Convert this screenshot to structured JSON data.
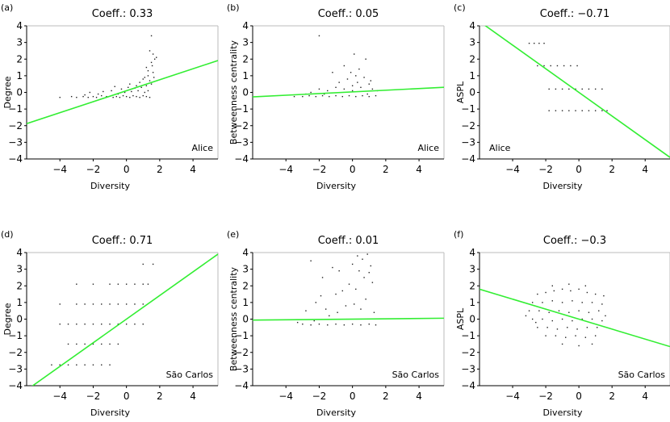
{
  "chart_data": [
    {
      "id": "a",
      "panel_label": "(a)",
      "type": "scatter",
      "title": "Coeff.: 0.33",
      "xlabel": "Diversity",
      "ylabel": "Degree",
      "annotation": "Alice",
      "annotation_pos": "bottom-right",
      "xlim": [
        -6,
        5.5
      ],
      "ylim": [
        -4,
        4
      ],
      "xticks": [
        -4,
        -2,
        0,
        2,
        4
      ],
      "yticks": [
        4,
        3,
        2,
        1,
        0,
        -1,
        -2,
        -3,
        -4
      ],
      "fit_line": {
        "slope": 0.33,
        "intercept": 0.1,
        "color": "#33ee33"
      },
      "points": [
        [
          -0.8,
          -0.3
        ],
        [
          -0.6,
          -0.25
        ],
        [
          -0.4,
          -0.3
        ],
        [
          -0.2,
          -0.2
        ],
        [
          0,
          -0.25
        ],
        [
          0.2,
          -0.3
        ],
        [
          0.4,
          -0.2
        ],
        [
          0.6,
          -0.25
        ],
        [
          0.8,
          -0.3
        ],
        [
          1,
          -0.2
        ],
        [
          1.2,
          -0.25
        ],
        [
          1.4,
          -0.3
        ],
        [
          -0.5,
          -0.1
        ],
        [
          -0.1,
          0
        ],
        [
          0.3,
          0.05
        ],
        [
          0.7,
          0.1
        ],
        [
          1.1,
          0
        ],
        [
          1.3,
          0.1
        ],
        [
          -0.3,
          0.2
        ],
        [
          0.5,
          0.25
        ],
        [
          0.9,
          0.3
        ],
        [
          1.2,
          0.4
        ],
        [
          1.5,
          0.5
        ],
        [
          0.2,
          0.5
        ],
        [
          0.8,
          0.6
        ],
        [
          1,
          0.8
        ],
        [
          1.3,
          1
        ],
        [
          1.6,
          1.2
        ],
        [
          1.2,
          1.5
        ],
        [
          1.5,
          1.8
        ],
        [
          1.7,
          2
        ],
        [
          1.6,
          2.3
        ],
        [
          1.4,
          2.5
        ],
        [
          1.5,
          3.4
        ],
        [
          1.3,
          1.3
        ],
        [
          1.1,
          0.9
        ],
        [
          0.6,
          0.4
        ],
        [
          -0.9,
          0.1
        ],
        [
          -1.2,
          -0.25
        ],
        [
          -1.5,
          -0.2
        ],
        [
          -1.8,
          -0.3
        ],
        [
          -2,
          -0.25
        ],
        [
          -2.3,
          -0.3
        ],
        [
          -2.6,
          -0.25
        ],
        [
          -3,
          -0.3
        ],
        [
          -3.3,
          -0.25
        ],
        [
          -4,
          -0.3
        ],
        [
          -1.4,
          0.05
        ],
        [
          -1.7,
          -0.1
        ],
        [
          -2.5,
          -0.15
        ],
        [
          -2.2,
          0
        ],
        [
          -0.7,
          0.35
        ],
        [
          0.1,
          0.3
        ],
        [
          1.4,
          0.7
        ],
        [
          1.65,
          0.9
        ],
        [
          1.55,
          1.6
        ],
        [
          1.8,
          2.1
        ]
      ]
    },
    {
      "id": "b",
      "panel_label": "(b)",
      "type": "scatter",
      "title": "Coeff.: 0.05",
      "xlabel": "Diversity",
      "ylabel": "Betweenness centrality",
      "annotation": "Alice",
      "annotation_pos": "bottom-right",
      "xlim": [
        -6,
        5.5
      ],
      "ylim": [
        -4,
        4
      ],
      "xticks": [
        -4,
        -2,
        0,
        2,
        4
      ],
      "yticks": [
        4,
        3,
        2,
        1,
        0,
        -1,
        -2,
        -3,
        -4
      ],
      "fit_line": {
        "slope": 0.05,
        "intercept": 0.03,
        "color": "#33ee33"
      },
      "points": [
        [
          -3.5,
          -0.25
        ],
        [
          -3,
          -0.25
        ],
        [
          -2.6,
          -0.2
        ],
        [
          -2.2,
          -0.25
        ],
        [
          -1.8,
          -0.2
        ],
        [
          -1.4,
          -0.25
        ],
        [
          -1,
          -0.2
        ],
        [
          -0.6,
          -0.25
        ],
        [
          -0.2,
          -0.2
        ],
        [
          0.2,
          -0.25
        ],
        [
          0.6,
          -0.2
        ],
        [
          1,
          -0.25
        ],
        [
          1.4,
          -0.2
        ],
        [
          -2.5,
          0
        ],
        [
          -2,
          0.2
        ],
        [
          -1.5,
          0.1
        ],
        [
          -1,
          0.3
        ],
        [
          -0.5,
          0.2
        ],
        [
          0,
          0.4
        ],
        [
          0.5,
          0.3
        ],
        [
          1,
          0.5
        ],
        [
          -0.3,
          0.8
        ],
        [
          0.2,
          1
        ],
        [
          0.7,
          0.9
        ],
        [
          -1.2,
          1.2
        ],
        [
          0.4,
          1.4
        ],
        [
          -0.8,
          0.6
        ],
        [
          1.2,
          0.2
        ],
        [
          1.5,
          0.1
        ],
        [
          -2,
          3.4
        ],
        [
          0.1,
          2.3
        ],
        [
          0.8,
          2
        ],
        [
          -0.5,
          1.6
        ],
        [
          0,
          0.1
        ],
        [
          -1.7,
          -0.1
        ],
        [
          -2.8,
          -0.1
        ],
        [
          0.9,
          -0.1
        ],
        [
          0.3,
          0.6
        ],
        [
          -0.1,
          1.2
        ],
        [
          1.1,
          0.7
        ]
      ]
    },
    {
      "id": "c",
      "panel_label": "(c)",
      "type": "scatter",
      "title": "Coeff.: −0.71",
      "xlabel": "Diversity",
      "ylabel": "ASPL",
      "annotation": "Alice",
      "annotation_pos": "bottom-left",
      "xlim": [
        -6,
        5.5
      ],
      "ylim": [
        -4,
        4
      ],
      "xticks": [
        -4,
        -2,
        0,
        2,
        4
      ],
      "yticks": [
        4,
        3,
        2,
        1,
        0,
        -1,
        -2,
        -3,
        -4
      ],
      "fit_line": {
        "slope": -0.71,
        "intercept": 0,
        "color": "#33ee33"
      },
      "points": [
        [
          -3,
          2.95
        ],
        [
          -2.7,
          2.95
        ],
        [
          -2.4,
          2.95
        ],
        [
          -2.1,
          2.95
        ],
        [
          -2.5,
          1.6
        ],
        [
          -2.1,
          1.6
        ],
        [
          -1.7,
          1.6
        ],
        [
          -1.3,
          1.6
        ],
        [
          -0.9,
          1.6
        ],
        [
          -0.5,
          1.6
        ],
        [
          -0.1,
          1.6
        ],
        [
          -1.8,
          0.2
        ],
        [
          -1.4,
          0.2
        ],
        [
          -1,
          0.2
        ],
        [
          -0.6,
          0.2
        ],
        [
          -0.2,
          0.2
        ],
        [
          0.2,
          0.2
        ],
        [
          0.6,
          0.2
        ],
        [
          1,
          0.2
        ],
        [
          1.4,
          0.2
        ],
        [
          -1.8,
          -1.1
        ],
        [
          -1.4,
          -1.1
        ],
        [
          -1,
          -1.1
        ],
        [
          -0.6,
          -1.1
        ],
        [
          -0.2,
          -1.1
        ],
        [
          0.2,
          -1.1
        ],
        [
          0.6,
          -1.1
        ],
        [
          1,
          -1.1
        ],
        [
          1.4,
          -1.1
        ],
        [
          1.7,
          -1.1
        ]
      ]
    },
    {
      "id": "d",
      "panel_label": "(d)",
      "type": "scatter",
      "title": "Coeff.: 0.71",
      "xlabel": "Diversity",
      "ylabel": "Degree",
      "annotation": "São Carlos",
      "annotation_pos": "bottom-right",
      "xlim": [
        -6,
        5.5
      ],
      "ylim": [
        -4,
        4
      ],
      "xticks": [
        -4,
        -2,
        0,
        2,
        4
      ],
      "yticks": [
        4,
        3,
        2,
        1,
        0,
        -1,
        -2,
        -3,
        -4
      ],
      "fit_line": {
        "slope": 0.71,
        "intercept": 0,
        "color": "#33ee33"
      },
      "points": [
        [
          -4.5,
          -2.75
        ],
        [
          -4,
          -2.75
        ],
        [
          -3.5,
          -2.75
        ],
        [
          -3,
          -2.75
        ],
        [
          -2.5,
          -2.75
        ],
        [
          -2,
          -2.75
        ],
        [
          -1.5,
          -2.75
        ],
        [
          -1,
          -2.75
        ],
        [
          -3.5,
          -1.5
        ],
        [
          -3,
          -1.5
        ],
        [
          -2.5,
          -1.5
        ],
        [
          -2,
          -1.5
        ],
        [
          -1.5,
          -1.5
        ],
        [
          -1,
          -1.5
        ],
        [
          -0.5,
          -1.5
        ],
        [
          -4,
          -0.3
        ],
        [
          -3.5,
          -0.3
        ],
        [
          -3,
          -0.3
        ],
        [
          -2.5,
          -0.3
        ],
        [
          -2,
          -0.3
        ],
        [
          -1.5,
          -0.3
        ],
        [
          -1,
          -0.3
        ],
        [
          -0.5,
          -0.3
        ],
        [
          0,
          -0.3
        ],
        [
          0.5,
          -0.3
        ],
        [
          1,
          -0.3
        ],
        [
          -4,
          0.9
        ],
        [
          -3,
          0.9
        ],
        [
          -2.5,
          0.9
        ],
        [
          -2,
          0.9
        ],
        [
          -1.5,
          0.9
        ],
        [
          -1,
          0.9
        ],
        [
          -0.5,
          0.9
        ],
        [
          0,
          0.9
        ],
        [
          0.5,
          0.9
        ],
        [
          1,
          0.9
        ],
        [
          -3,
          2.1
        ],
        [
          -2,
          2.1
        ],
        [
          -1,
          2.1
        ],
        [
          -0.5,
          2.1
        ],
        [
          0,
          2.1
        ],
        [
          0.5,
          2.1
        ],
        [
          1,
          2.1
        ],
        [
          1.3,
          2.1
        ],
        [
          1,
          3.3
        ],
        [
          1.6,
          3.3
        ]
      ]
    },
    {
      "id": "e",
      "panel_label": "(e)",
      "type": "scatter",
      "title": "Coeff.: 0.01",
      "xlabel": "Diversity",
      "ylabel": "Betweenness centrality",
      "annotation": "São Carlos",
      "annotation_pos": "bottom-right",
      "xlim": [
        -6,
        5.5
      ],
      "ylim": [
        -4,
        4
      ],
      "xticks": [
        -4,
        -2,
        0,
        2,
        4
      ],
      "yticks": [
        4,
        3,
        2,
        1,
        0,
        -1,
        -2,
        -3,
        -4
      ],
      "fit_line": {
        "slope": 0.01,
        "intercept": 0,
        "color": "#33ee33"
      },
      "points": [
        [
          -3,
          -0.3
        ],
        [
          -2.5,
          -0.35
        ],
        [
          -2,
          -0.3
        ],
        [
          -1.5,
          -0.35
        ],
        [
          -1,
          -0.3
        ],
        [
          -0.5,
          -0.35
        ],
        [
          0,
          -0.3
        ],
        [
          0.5,
          -0.35
        ],
        [
          1,
          -0.3
        ],
        [
          1.4,
          -0.35
        ],
        [
          -2.8,
          0.5
        ],
        [
          -2.2,
          1
        ],
        [
          -1.6,
          0.6
        ],
        [
          -1,
          1.5
        ],
        [
          -0.4,
          0.8
        ],
        [
          0.2,
          1.8
        ],
        [
          0.8,
          1.2
        ],
        [
          1.2,
          2.2
        ],
        [
          -1.8,
          2.5
        ],
        [
          -0.8,
          2.9
        ],
        [
          0,
          3.3
        ],
        [
          0.6,
          3.6
        ],
        [
          1,
          2.8
        ],
        [
          -2.5,
          3.5
        ],
        [
          -1.2,
          3.1
        ],
        [
          0.3,
          3.8
        ],
        [
          0.9,
          3.9
        ],
        [
          -0.2,
          2.1
        ],
        [
          0.5,
          0.6
        ],
        [
          -1.4,
          0.2
        ],
        [
          -2.3,
          -0.1
        ],
        [
          -3.3,
          -0.2
        ],
        [
          1.3,
          0.4
        ],
        [
          0.7,
          2.5
        ],
        [
          -0.6,
          1.7
        ],
        [
          1.1,
          3.2
        ],
        [
          -1.9,
          1.4
        ],
        [
          0.1,
          0.9
        ],
        [
          -0.9,
          0.4
        ],
        [
          0.4,
          2.9
        ]
      ]
    },
    {
      "id": "f",
      "panel_label": "(f)",
      "type": "scatter",
      "title": "Coeff.: −0.3",
      "xlabel": "Diversity",
      "ylabel": "ASPL",
      "annotation": "São Carlos",
      "annotation_pos": "bottom-right",
      "xlim": [
        -6,
        5.5
      ],
      "ylim": [
        -4,
        4
      ],
      "xticks": [
        -4,
        -2,
        0,
        2,
        4
      ],
      "yticks": [
        4,
        3,
        2,
        1,
        0,
        -1,
        -2,
        -3,
        -4
      ],
      "fit_line": {
        "slope": -0.3,
        "intercept": 0,
        "color": "#33ee33"
      },
      "points": [
        [
          -2.5,
          1.5
        ],
        [
          -2,
          1.6
        ],
        [
          -1.5,
          1.7
        ],
        [
          -1,
          1.8
        ],
        [
          -0.5,
          1.7
        ],
        [
          0,
          1.8
        ],
        [
          0.5,
          1.6
        ],
        [
          1,
          1.5
        ],
        [
          1.5,
          1.4
        ],
        [
          -2.8,
          1
        ],
        [
          -2.2,
          1
        ],
        [
          -1.6,
          1.1
        ],
        [
          -1,
          1
        ],
        [
          -0.4,
          1.1
        ],
        [
          0.2,
          1
        ],
        [
          0.8,
          1
        ],
        [
          1.4,
          0.9
        ],
        [
          -3,
          0.5
        ],
        [
          -2.4,
          0.5
        ],
        [
          -1.8,
          0.4
        ],
        [
          -1.2,
          0.5
        ],
        [
          -0.6,
          0.4
        ],
        [
          0,
          0.5
        ],
        [
          0.6,
          0.4
        ],
        [
          1.2,
          0.5
        ],
        [
          -2.8,
          0
        ],
        [
          -2.2,
          0
        ],
        [
          -1.6,
          -0.1
        ],
        [
          -1,
          0
        ],
        [
          -0.4,
          -0.1
        ],
        [
          0.2,
          0
        ],
        [
          0.8,
          0
        ],
        [
          1.4,
          -0.1
        ],
        [
          -2.5,
          -0.5
        ],
        [
          -1.9,
          -0.5
        ],
        [
          -1.3,
          -0.6
        ],
        [
          -0.7,
          -0.5
        ],
        [
          -0.1,
          -0.6
        ],
        [
          0.5,
          -0.5
        ],
        [
          1.1,
          -0.5
        ],
        [
          -2,
          -1
        ],
        [
          -1.4,
          -1
        ],
        [
          -0.8,
          -1.1
        ],
        [
          -0.2,
          -1
        ],
        [
          0.4,
          -1.1
        ],
        [
          1,
          -1
        ],
        [
          -1,
          -1.5
        ],
        [
          0,
          -1.6
        ],
        [
          0.8,
          -1.5
        ],
        [
          -1.6,
          2
        ],
        [
          -0.6,
          2.1
        ],
        [
          0.4,
          2
        ],
        [
          -3.2,
          0.2
        ],
        [
          -2.6,
          -0.2
        ],
        [
          1.6,
          0.2
        ]
      ]
    }
  ]
}
